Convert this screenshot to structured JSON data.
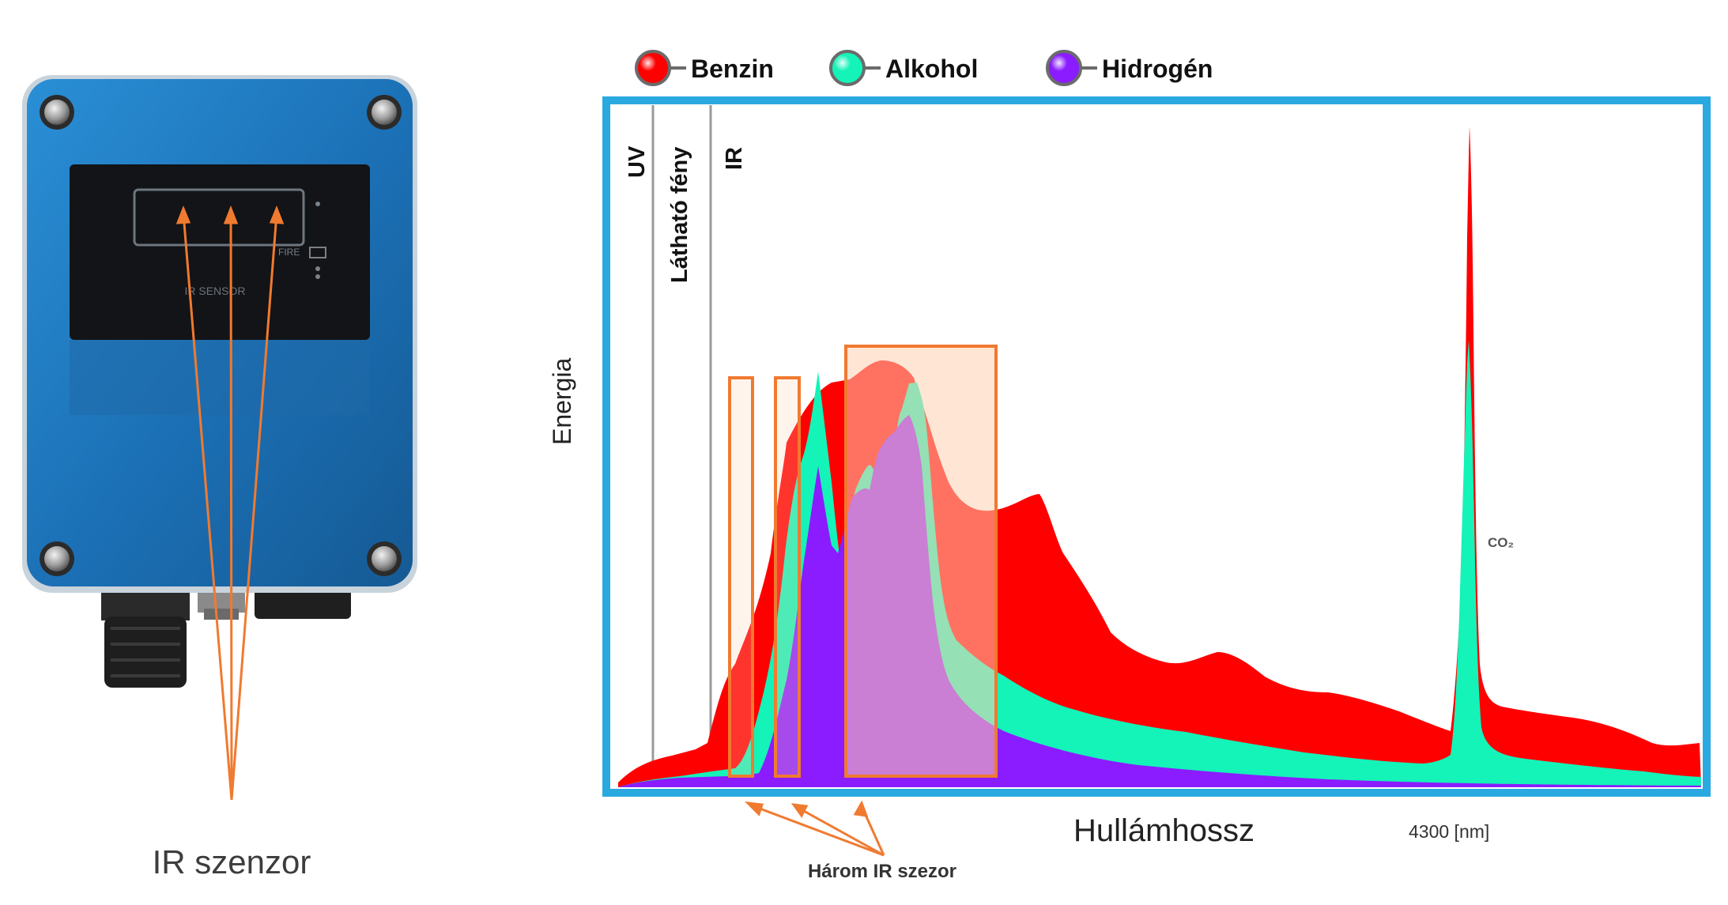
{
  "sensor": {
    "caption": "IR szenzor",
    "window_text": "IR SENSOR",
    "fire_text": "FIRE"
  },
  "legend": [
    {
      "label": "Benzin",
      "color": "#ff0000"
    },
    {
      "label": "Alkohol",
      "color": "#14f3b8"
    },
    {
      "label": "Hidrogén",
      "color": "#8a1cff"
    }
  ],
  "chart": {
    "ylabel": "Energia",
    "xlabel": "Hullámhossz",
    "tick_label": "4300 [nm]",
    "regions": {
      "uv": "UV",
      "visible": "Látható fény",
      "ir": "IR"
    },
    "co2_label": "CO₂",
    "sensors_note": "Három IR szezor",
    "frame_color": "#2aa9e0",
    "highlight_color": "#f07a30"
  },
  "chart_data": {
    "type": "area",
    "title": "",
    "xlabel": "Hullámhossz",
    "ylabel": "Energia",
    "x_ticks": [
      {
        "value": 4300,
        "label": "4300 [nm]"
      }
    ],
    "regions": [
      "UV",
      "Látható fény",
      "IR"
    ],
    "annotations": [
      "CO₂",
      "Három IR szezor"
    ],
    "series": [
      {
        "name": "Benzin",
        "color": "#ff0000"
      },
      {
        "name": "Alkohol",
        "color": "#14f3b8"
      },
      {
        "name": "Hidrogén",
        "color": "#8a1cff"
      }
    ]
  }
}
